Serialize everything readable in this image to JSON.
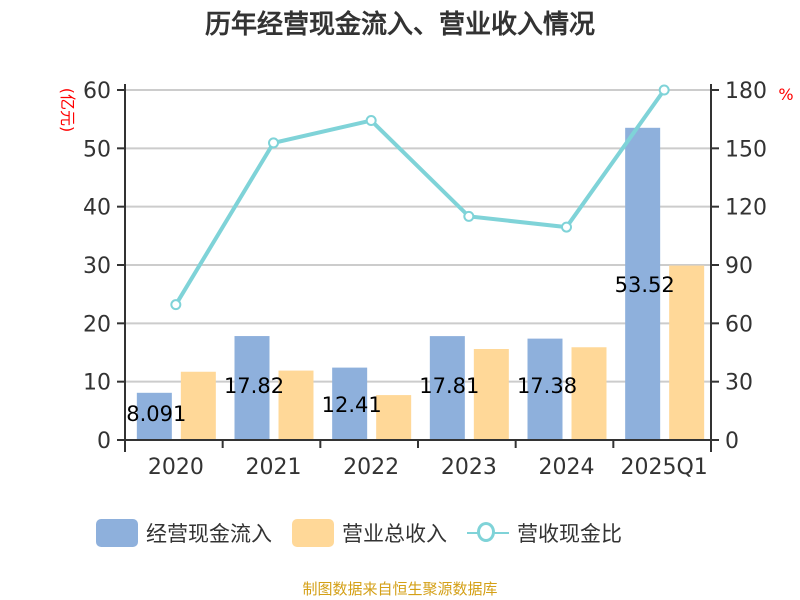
{
  "title": "历年经营现金流入、营业收入情况",
  "left_axis": {
    "unit": "(亿元)",
    "ticks": [
      "0",
      "10",
      "20",
      "30",
      "40",
      "50",
      "60"
    ]
  },
  "right_axis": {
    "unit": "%",
    "ticks": [
      "0",
      "30",
      "60",
      "90",
      "120",
      "150",
      "180"
    ]
  },
  "categories": [
    "2020",
    "2021",
    "2022",
    "2023",
    "2024",
    "2025Q1"
  ],
  "bar_labels": [
    "8.091",
    "17.82",
    "12.41",
    "17.81",
    "17.38",
    "53.52"
  ],
  "legend": {
    "series1": "经营现金流入",
    "series2": "营业总收入",
    "series3": "营收现金比"
  },
  "source": "制图数据来自恒生聚源数据库",
  "colors": {
    "cash_inflow": "#8eb0dc",
    "revenue": "#ffd898",
    "ratio": "#7fd3d8",
    "unit": "#ff0000",
    "source": "#d4a017"
  },
  "chart_data": {
    "type": "bar",
    "title": "历年经营现金流入、营业收入情况",
    "xlabel": "",
    "ylabel": "(亿元)",
    "ylabel_right": "%",
    "categories": [
      "2020",
      "2021",
      "2022",
      "2023",
      "2024",
      "2025Q1"
    ],
    "ylim": [
      0,
      60
    ],
    "ylim_right": [
      0,
      180
    ],
    "grid": true,
    "legend_position": "bottom",
    "series": [
      {
        "name": "经营现金流入",
        "type": "bar",
        "axis": "left",
        "values": [
          8.091,
          17.82,
          12.41,
          17.81,
          17.38,
          53.52
        ]
      },
      {
        "name": "营业总收入",
        "type": "bar",
        "axis": "left",
        "values": [
          11.7,
          11.9,
          7.7,
          15.6,
          15.9,
          29.9
        ]
      },
      {
        "name": "营收现金比",
        "type": "line",
        "axis": "right",
        "values": [
          69.6,
          152.8,
          164.3,
          115.0,
          109.5,
          180.0
        ]
      }
    ],
    "annotations": [
      "8.091",
      "17.82",
      "12.41",
      "17.81",
      "17.38",
      "53.52"
    ],
    "source": "制图数据来自恒生聚源数据库"
  }
}
